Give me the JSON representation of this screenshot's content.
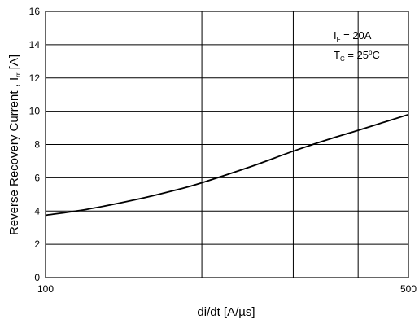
{
  "chart_data": {
    "type": "line",
    "title": "",
    "xlabel": "di/dt [A/µs]",
    "ylabel": {
      "main": "Reverse Recovery Current , I",
      "subscript": "rr",
      "unit": " [A]"
    },
    "xscale": "log",
    "xlim": [
      100,
      500
    ],
    "ylim": [
      0,
      16
    ],
    "x_ticks": [
      {
        "value": 100,
        "label": "100"
      },
      {
        "value": 500,
        "label": "500"
      }
    ],
    "x_gridlines": [
      200,
      300,
      400
    ],
    "y_ticks": [
      0,
      2,
      4,
      6,
      8,
      10,
      12,
      14,
      16
    ],
    "grid": true,
    "series": [
      {
        "x": [
          100,
          120,
          150,
          180,
          200,
          250,
          300,
          350,
          400,
          450,
          500
        ],
        "y": [
          3.75,
          4.1,
          4.7,
          5.3,
          5.7,
          6.7,
          7.6,
          8.3,
          8.85,
          9.35,
          9.8
        ]
      }
    ],
    "annotations": [
      {
        "symbol": "I",
        "subscript": "F",
        "text": " = 20A"
      },
      {
        "symbol": "T",
        "subscript": "C",
        "text": " = 25",
        "superscript": "o",
        "suffix": "C"
      }
    ]
  }
}
